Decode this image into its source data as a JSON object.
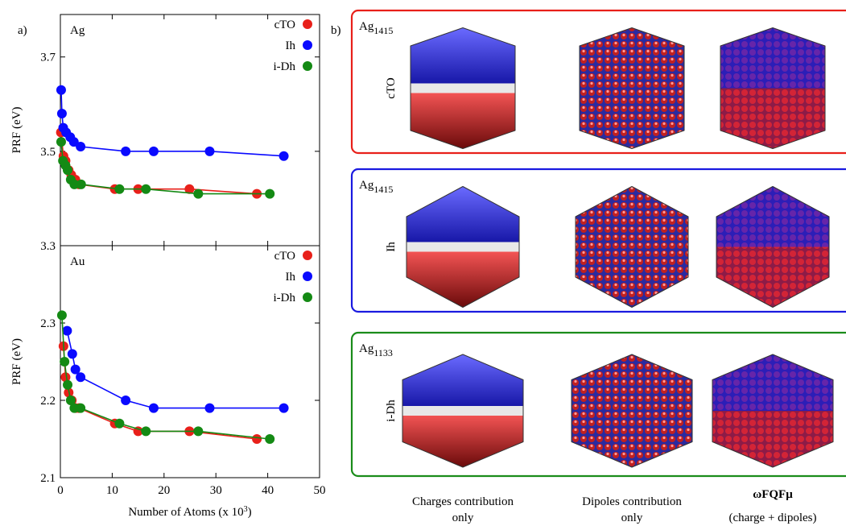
{
  "chart_data": [
    {
      "type": "line",
      "annotation": "Ag",
      "ylabel": "PRF (eV)",
      "legend": "upper right",
      "xlim": [
        0,
        50
      ],
      "xticks": [
        0,
        10,
        20,
        30,
        40,
        50
      ],
      "ylim": [
        3.3,
        3.79
      ],
      "yticks": [
        3.3,
        3.5,
        3.7
      ],
      "series": [
        {
          "name": "cTO",
          "color": "#e8201a",
          "x": [
            0.1,
            0.6,
            1.0,
            1.6,
            2.1,
            2.9,
            3.6,
            10.5,
            15.0,
            24.9,
            37.9
          ],
          "values": [
            3.54,
            3.49,
            3.48,
            3.46,
            3.45,
            3.44,
            3.43,
            3.42,
            3.42,
            3.42,
            3.41
          ]
        },
        {
          "name": "Ih",
          "color": "#0a0aff",
          "x": [
            0.15,
            0.3,
            0.55,
            1.1,
            1.9,
            2.6,
            3.9,
            12.6,
            18.0,
            28.8,
            43.1
          ],
          "values": [
            3.63,
            3.58,
            3.55,
            3.54,
            3.53,
            3.52,
            3.51,
            3.5,
            3.5,
            3.5,
            3.49
          ]
        },
        {
          "name": "i-Dh",
          "color": "#148a14",
          "x": [
            0.15,
            0.5,
            1.0,
            1.4,
            2.0,
            2.7,
            4.0,
            11.4,
            16.5,
            26.6,
            40.4
          ],
          "values": [
            3.52,
            3.48,
            3.47,
            3.46,
            3.44,
            3.43,
            3.43,
            3.42,
            3.42,
            3.41,
            3.41
          ]
        }
      ]
    },
    {
      "type": "line",
      "annotation": "Au",
      "ylabel": "PRF (eV)",
      "legend": "upper right",
      "xlabel": "Number of Atoms (x 10",
      "xlabel_exponent": "3",
      "xlabel_end": ")",
      "xlim": [
        0,
        50
      ],
      "xticks": [
        0,
        10,
        20,
        30,
        40,
        50
      ],
      "ylim": [
        2.1,
        2.4
      ],
      "yticks": [
        2.1,
        2.2,
        2.3
      ],
      "series": [
        {
          "name": "cTO",
          "color": "#e8201a",
          "x": [
            0.6,
            1.0,
            1.6,
            2.2,
            2.9,
            3.6,
            10.5,
            15.0,
            24.9,
            37.9
          ],
          "values": [
            2.27,
            2.23,
            2.21,
            2.2,
            2.19,
            2.19,
            2.17,
            2.16,
            2.16,
            2.15
          ]
        },
        {
          "name": "Ih",
          "color": "#0a0aff",
          "x": [
            1.3,
            2.3,
            2.9,
            3.9,
            12.6,
            18.0,
            28.8,
            43.1
          ],
          "values": [
            2.29,
            2.26,
            2.24,
            2.23,
            2.2,
            2.19,
            2.19,
            2.19
          ]
        },
        {
          "name": "i-Dh",
          "color": "#148a14",
          "x": [
            0.3,
            0.8,
            1.4,
            2.0,
            2.7,
            3.9,
            11.4,
            16.5,
            26.6,
            40.4
          ],
          "values": [
            2.31,
            2.25,
            2.22,
            2.2,
            2.19,
            2.19,
            2.17,
            2.16,
            2.16,
            2.15
          ]
        }
      ]
    }
  ],
  "panel_a_label": "a)",
  "panel_b": {
    "label": "b)",
    "rows": [
      {
        "element": "Ag",
        "size": "1415",
        "name": "cTO",
        "color": "#e8201a"
      },
      {
        "element": "Ag",
        "size": "1415",
        "name": "Ih",
        "color": "#1a1ae0"
      },
      {
        "element": "Ag",
        "size": "1133",
        "name": "i-Dh",
        "color": "#1a8c1a"
      }
    ],
    "columns": [
      {
        "title": "Charges contribution",
        "subtitle": "only"
      },
      {
        "title": "Dipoles contribution",
        "subtitle": "only"
      },
      {
        "title": "ωFQFμ",
        "subtitle": "(charge + dipoles)"
      }
    ]
  }
}
